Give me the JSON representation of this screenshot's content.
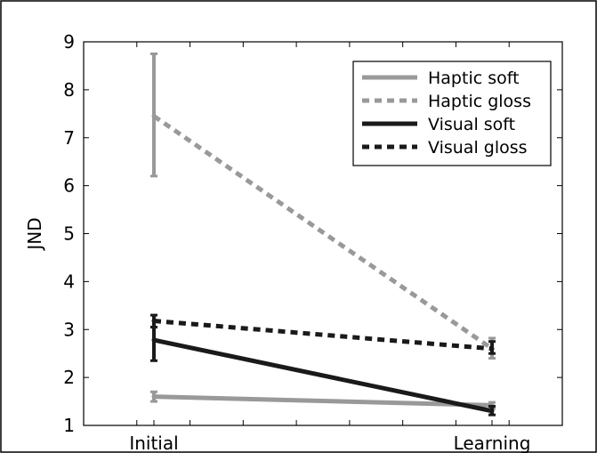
{
  "chart_data": {
    "type": "line",
    "categories": [
      "Initial",
      "Learning"
    ],
    "ylabel": "JND",
    "xlabel": "",
    "ylim": [
      1,
      9
    ],
    "yticks": [
      1,
      2,
      3,
      4,
      5,
      6,
      7,
      8,
      9
    ],
    "grid": false,
    "legend_position": "top-right",
    "series": [
      {
        "name": "Haptic soft",
        "values": [
          1.6,
          1.42
        ],
        "err_low": [
          1.5,
          1.35
        ],
        "err_high": [
          1.7,
          1.48
        ],
        "color": "#999999",
        "dash": "solid"
      },
      {
        "name": "Haptic gloss",
        "values": [
          7.45,
          2.6
        ],
        "err_low": [
          6.2,
          2.4
        ],
        "err_high": [
          8.75,
          2.82
        ],
        "color": "#999999",
        "dash": "dashed"
      },
      {
        "name": "Visual soft",
        "values": [
          2.78,
          1.3
        ],
        "err_low": [
          2.35,
          1.22
        ],
        "err_high": [
          3.05,
          1.4
        ],
        "color": "#1a1a1a",
        "dash": "solid"
      },
      {
        "name": "Visual gloss",
        "values": [
          3.18,
          2.6
        ],
        "err_low": [
          3.05,
          2.5
        ],
        "err_high": [
          3.3,
          2.75
        ],
        "color": "#1a1a1a",
        "dash": "dashed"
      }
    ]
  }
}
